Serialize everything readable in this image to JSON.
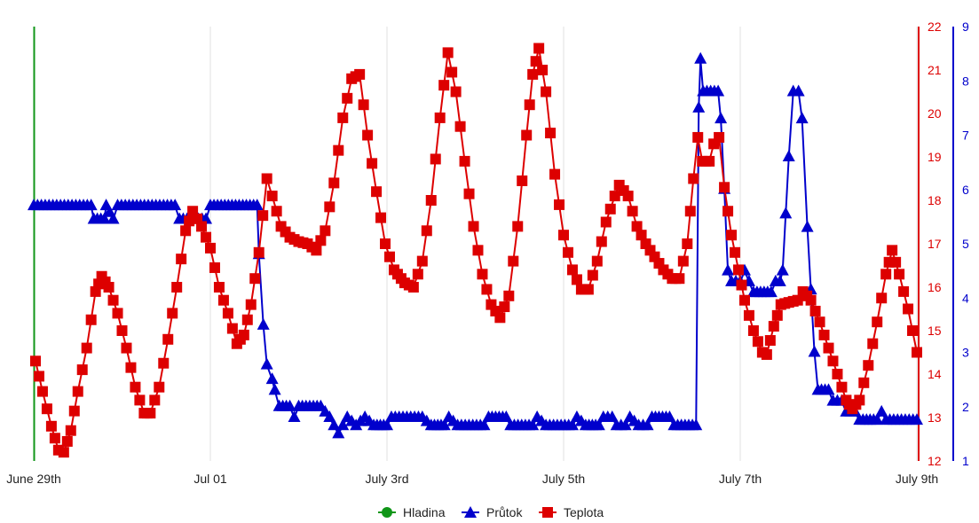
{
  "chart_data": {
    "type": "line",
    "x_unit": "days since June 29th 00:00",
    "x_range": [
      0,
      10
    ],
    "x_ticks": [
      {
        "value": 0,
        "label": "June 29th"
      },
      {
        "value": 2,
        "label": "Jul 01"
      },
      {
        "value": 4,
        "label": "July 3rd"
      },
      {
        "value": 6,
        "label": "July 5th"
      },
      {
        "value": 8,
        "label": "July 7th"
      },
      {
        "value": 10,
        "label": "July 9th"
      }
    ],
    "axes": {
      "temperature": {
        "range": [
          12,
          22
        ],
        "ticks": [
          "12",
          "13",
          "14",
          "15",
          "16",
          "17",
          "18",
          "19",
          "20",
          "21",
          "22"
        ],
        "color": "#dd0000",
        "position": "right"
      },
      "flow": {
        "range": [
          1,
          9
        ],
        "ticks": [
          "1",
          "2",
          "3",
          "4",
          "5",
          "6",
          "7",
          "8",
          "9"
        ],
        "color": "#0000cc",
        "position": "right-outer"
      },
      "level": {
        "color": "#00a000",
        "position": "left"
      }
    },
    "legend_position": "bottom-center",
    "series": [
      {
        "name": "Hladina",
        "color": "#109618",
        "marker": "circle",
        "axis": "level",
        "points": []
      },
      {
        "name": "Průtok",
        "color": "#0000cc",
        "marker": "triangle",
        "axis": "flow",
        "points": [
          [
            0,
            5.7
          ],
          [
            0.65,
            5.7
          ],
          [
            0.68,
            5.45
          ],
          [
            0.8,
            5.45
          ],
          [
            0.82,
            5.7
          ],
          [
            0.9,
            5.45
          ],
          [
            0.95,
            5.7
          ],
          [
            1.6,
            5.7
          ],
          [
            1.65,
            5.45
          ],
          [
            1.95,
            5.45
          ],
          [
            2.0,
            5.7
          ],
          [
            2.53,
            5.7
          ],
          [
            2.55,
            4.8
          ],
          [
            2.6,
            3.5
          ],
          [
            2.64,
            2.77
          ],
          [
            2.7,
            2.5
          ],
          [
            2.73,
            2.3
          ],
          [
            2.78,
            2.0
          ],
          [
            2.9,
            2.0
          ],
          [
            2.95,
            1.8
          ],
          [
            3.0,
            2.0
          ],
          [
            3.25,
            2.0
          ],
          [
            3.35,
            1.8
          ],
          [
            3.45,
            1.5
          ],
          [
            3.55,
            1.8
          ],
          [
            3.65,
            1.65
          ],
          [
            3.75,
            1.8
          ],
          [
            3.85,
            1.65
          ],
          [
            4.0,
            1.65
          ],
          [
            4.05,
            1.8
          ],
          [
            4.4,
            1.8
          ],
          [
            4.5,
            1.65
          ],
          [
            4.65,
            1.65
          ],
          [
            4.7,
            1.8
          ],
          [
            4.8,
            1.65
          ],
          [
            5.1,
            1.65
          ],
          [
            5.15,
            1.8
          ],
          [
            5.35,
            1.8
          ],
          [
            5.4,
            1.65
          ],
          [
            5.65,
            1.65
          ],
          [
            5.7,
            1.8
          ],
          [
            5.8,
            1.65
          ],
          [
            6.1,
            1.65
          ],
          [
            6.15,
            1.8
          ],
          [
            6.25,
            1.65
          ],
          [
            6.4,
            1.65
          ],
          [
            6.45,
            1.8
          ],
          [
            6.55,
            1.8
          ],
          [
            6.6,
            1.65
          ],
          [
            6.7,
            1.65
          ],
          [
            6.75,
            1.8
          ],
          [
            6.85,
            1.65
          ],
          [
            6.95,
            1.65
          ],
          [
            7.0,
            1.8
          ],
          [
            7.2,
            1.8
          ],
          [
            7.25,
            1.65
          ],
          [
            7.5,
            1.65
          ],
          [
            7.53,
            7.5
          ],
          [
            7.55,
            8.4
          ],
          [
            7.58,
            7.8
          ],
          [
            7.75,
            7.8
          ],
          [
            7.78,
            7.3
          ],
          [
            7.82,
            6.0
          ],
          [
            7.86,
            4.5
          ],
          [
            7.9,
            4.3
          ],
          [
            8.0,
            4.3
          ],
          [
            8.05,
            4.5
          ],
          [
            8.1,
            4.3
          ],
          [
            8.15,
            4.1
          ],
          [
            8.35,
            4.1
          ],
          [
            8.4,
            4.3
          ],
          [
            8.45,
            4.3
          ],
          [
            8.48,
            4.5
          ],
          [
            8.55,
            6.6
          ],
          [
            8.6,
            7.8
          ],
          [
            8.66,
            7.8
          ],
          [
            8.7,
            7.3
          ],
          [
            8.76,
            5.3
          ],
          [
            8.84,
            3.0
          ],
          [
            8.88,
            2.3
          ],
          [
            9.0,
            2.3
          ],
          [
            9.05,
            2.1
          ],
          [
            9.15,
            2.1
          ],
          [
            9.2,
            1.9
          ],
          [
            9.3,
            1.9
          ],
          [
            9.35,
            1.75
          ],
          [
            9.55,
            1.75
          ],
          [
            9.6,
            1.9
          ],
          [
            9.65,
            1.75
          ],
          [
            10,
            1.75
          ]
        ]
      },
      {
        "name": "Teplota",
        "color": "#dd0000",
        "marker": "square",
        "axis": "temperature",
        "points": [
          [
            0.02,
            14.3
          ],
          [
            0.1,
            13.6
          ],
          [
            0.2,
            12.8
          ],
          [
            0.28,
            12.25
          ],
          [
            0.34,
            12.2
          ],
          [
            0.42,
            12.7
          ],
          [
            0.5,
            13.6
          ],
          [
            0.6,
            14.6
          ],
          [
            0.7,
            15.9
          ],
          [
            0.77,
            16.25
          ],
          [
            0.85,
            16.0
          ],
          [
            0.95,
            15.4
          ],
          [
            1.05,
            14.6
          ],
          [
            1.15,
            13.7
          ],
          [
            1.25,
            13.1
          ],
          [
            1.32,
            13.1
          ],
          [
            1.42,
            13.7
          ],
          [
            1.52,
            14.8
          ],
          [
            1.62,
            16.0
          ],
          [
            1.72,
            17.3
          ],
          [
            1.8,
            17.75
          ],
          [
            1.9,
            17.4
          ],
          [
            2.0,
            16.9
          ],
          [
            2.1,
            16.0
          ],
          [
            2.2,
            15.4
          ],
          [
            2.3,
            14.7
          ],
          [
            2.38,
            14.9
          ],
          [
            2.46,
            15.6
          ],
          [
            2.55,
            16.8
          ],
          [
            2.64,
            18.5
          ],
          [
            2.7,
            18.1
          ],
          [
            2.8,
            17.4
          ],
          [
            2.9,
            17.15
          ],
          [
            3.0,
            17.05
          ],
          [
            3.1,
            17.0
          ],
          [
            3.2,
            16.85
          ],
          [
            3.3,
            17.3
          ],
          [
            3.4,
            18.4
          ],
          [
            3.5,
            19.9
          ],
          [
            3.6,
            20.8
          ],
          [
            3.69,
            20.9
          ],
          [
            3.78,
            19.5
          ],
          [
            3.88,
            18.2
          ],
          [
            3.98,
            17.0
          ],
          [
            4.08,
            16.4
          ],
          [
            4.2,
            16.1
          ],
          [
            4.3,
            16.0
          ],
          [
            4.4,
            16.6
          ],
          [
            4.5,
            18.0
          ],
          [
            4.6,
            19.9
          ],
          [
            4.69,
            21.4
          ],
          [
            4.78,
            20.5
          ],
          [
            4.88,
            18.9
          ],
          [
            4.98,
            17.4
          ],
          [
            5.08,
            16.3
          ],
          [
            5.18,
            15.6
          ],
          [
            5.28,
            15.3
          ],
          [
            5.38,
            15.8
          ],
          [
            5.48,
            17.4
          ],
          [
            5.58,
            19.5
          ],
          [
            5.65,
            20.9
          ],
          [
            5.72,
            21.5
          ],
          [
            5.8,
            20.5
          ],
          [
            5.9,
            18.6
          ],
          [
            6.0,
            17.2
          ],
          [
            6.1,
            16.4
          ],
          [
            6.2,
            15.95
          ],
          [
            6.28,
            15.95
          ],
          [
            6.38,
            16.6
          ],
          [
            6.48,
            17.5
          ],
          [
            6.58,
            18.1
          ],
          [
            6.63,
            18.35
          ],
          [
            6.73,
            18.1
          ],
          [
            6.83,
            17.4
          ],
          [
            6.93,
            17.0
          ],
          [
            7.03,
            16.7
          ],
          [
            7.13,
            16.4
          ],
          [
            7.23,
            16.2
          ],
          [
            7.31,
            16.2
          ],
          [
            7.4,
            17.0
          ],
          [
            7.47,
            18.5
          ],
          [
            7.52,
            19.45
          ],
          [
            7.57,
            18.9
          ],
          [
            7.65,
            18.9
          ],
          [
            7.7,
            19.3
          ],
          [
            7.76,
            19.45
          ],
          [
            7.82,
            18.3
          ],
          [
            7.9,
            17.2
          ],
          [
            7.98,
            16.4
          ],
          [
            8.05,
            15.7
          ],
          [
            8.15,
            15.0
          ],
          [
            8.25,
            14.5
          ],
          [
            8.3,
            14.45
          ],
          [
            8.38,
            15.1
          ],
          [
            8.46,
            15.6
          ],
          [
            8.55,
            15.65
          ],
          [
            8.65,
            15.7
          ],
          [
            8.71,
            15.9
          ],
          [
            8.8,
            15.7
          ],
          [
            8.9,
            15.2
          ],
          [
            9.0,
            14.6
          ],
          [
            9.1,
            14.0
          ],
          [
            9.2,
            13.4
          ],
          [
            9.27,
            13.2
          ],
          [
            9.35,
            13.4
          ],
          [
            9.45,
            14.2
          ],
          [
            9.55,
            15.2
          ],
          [
            9.65,
            16.3
          ],
          [
            9.72,
            16.85
          ],
          [
            9.8,
            16.3
          ],
          [
            9.9,
            15.5
          ],
          [
            10,
            14.5
          ]
        ]
      }
    ]
  }
}
